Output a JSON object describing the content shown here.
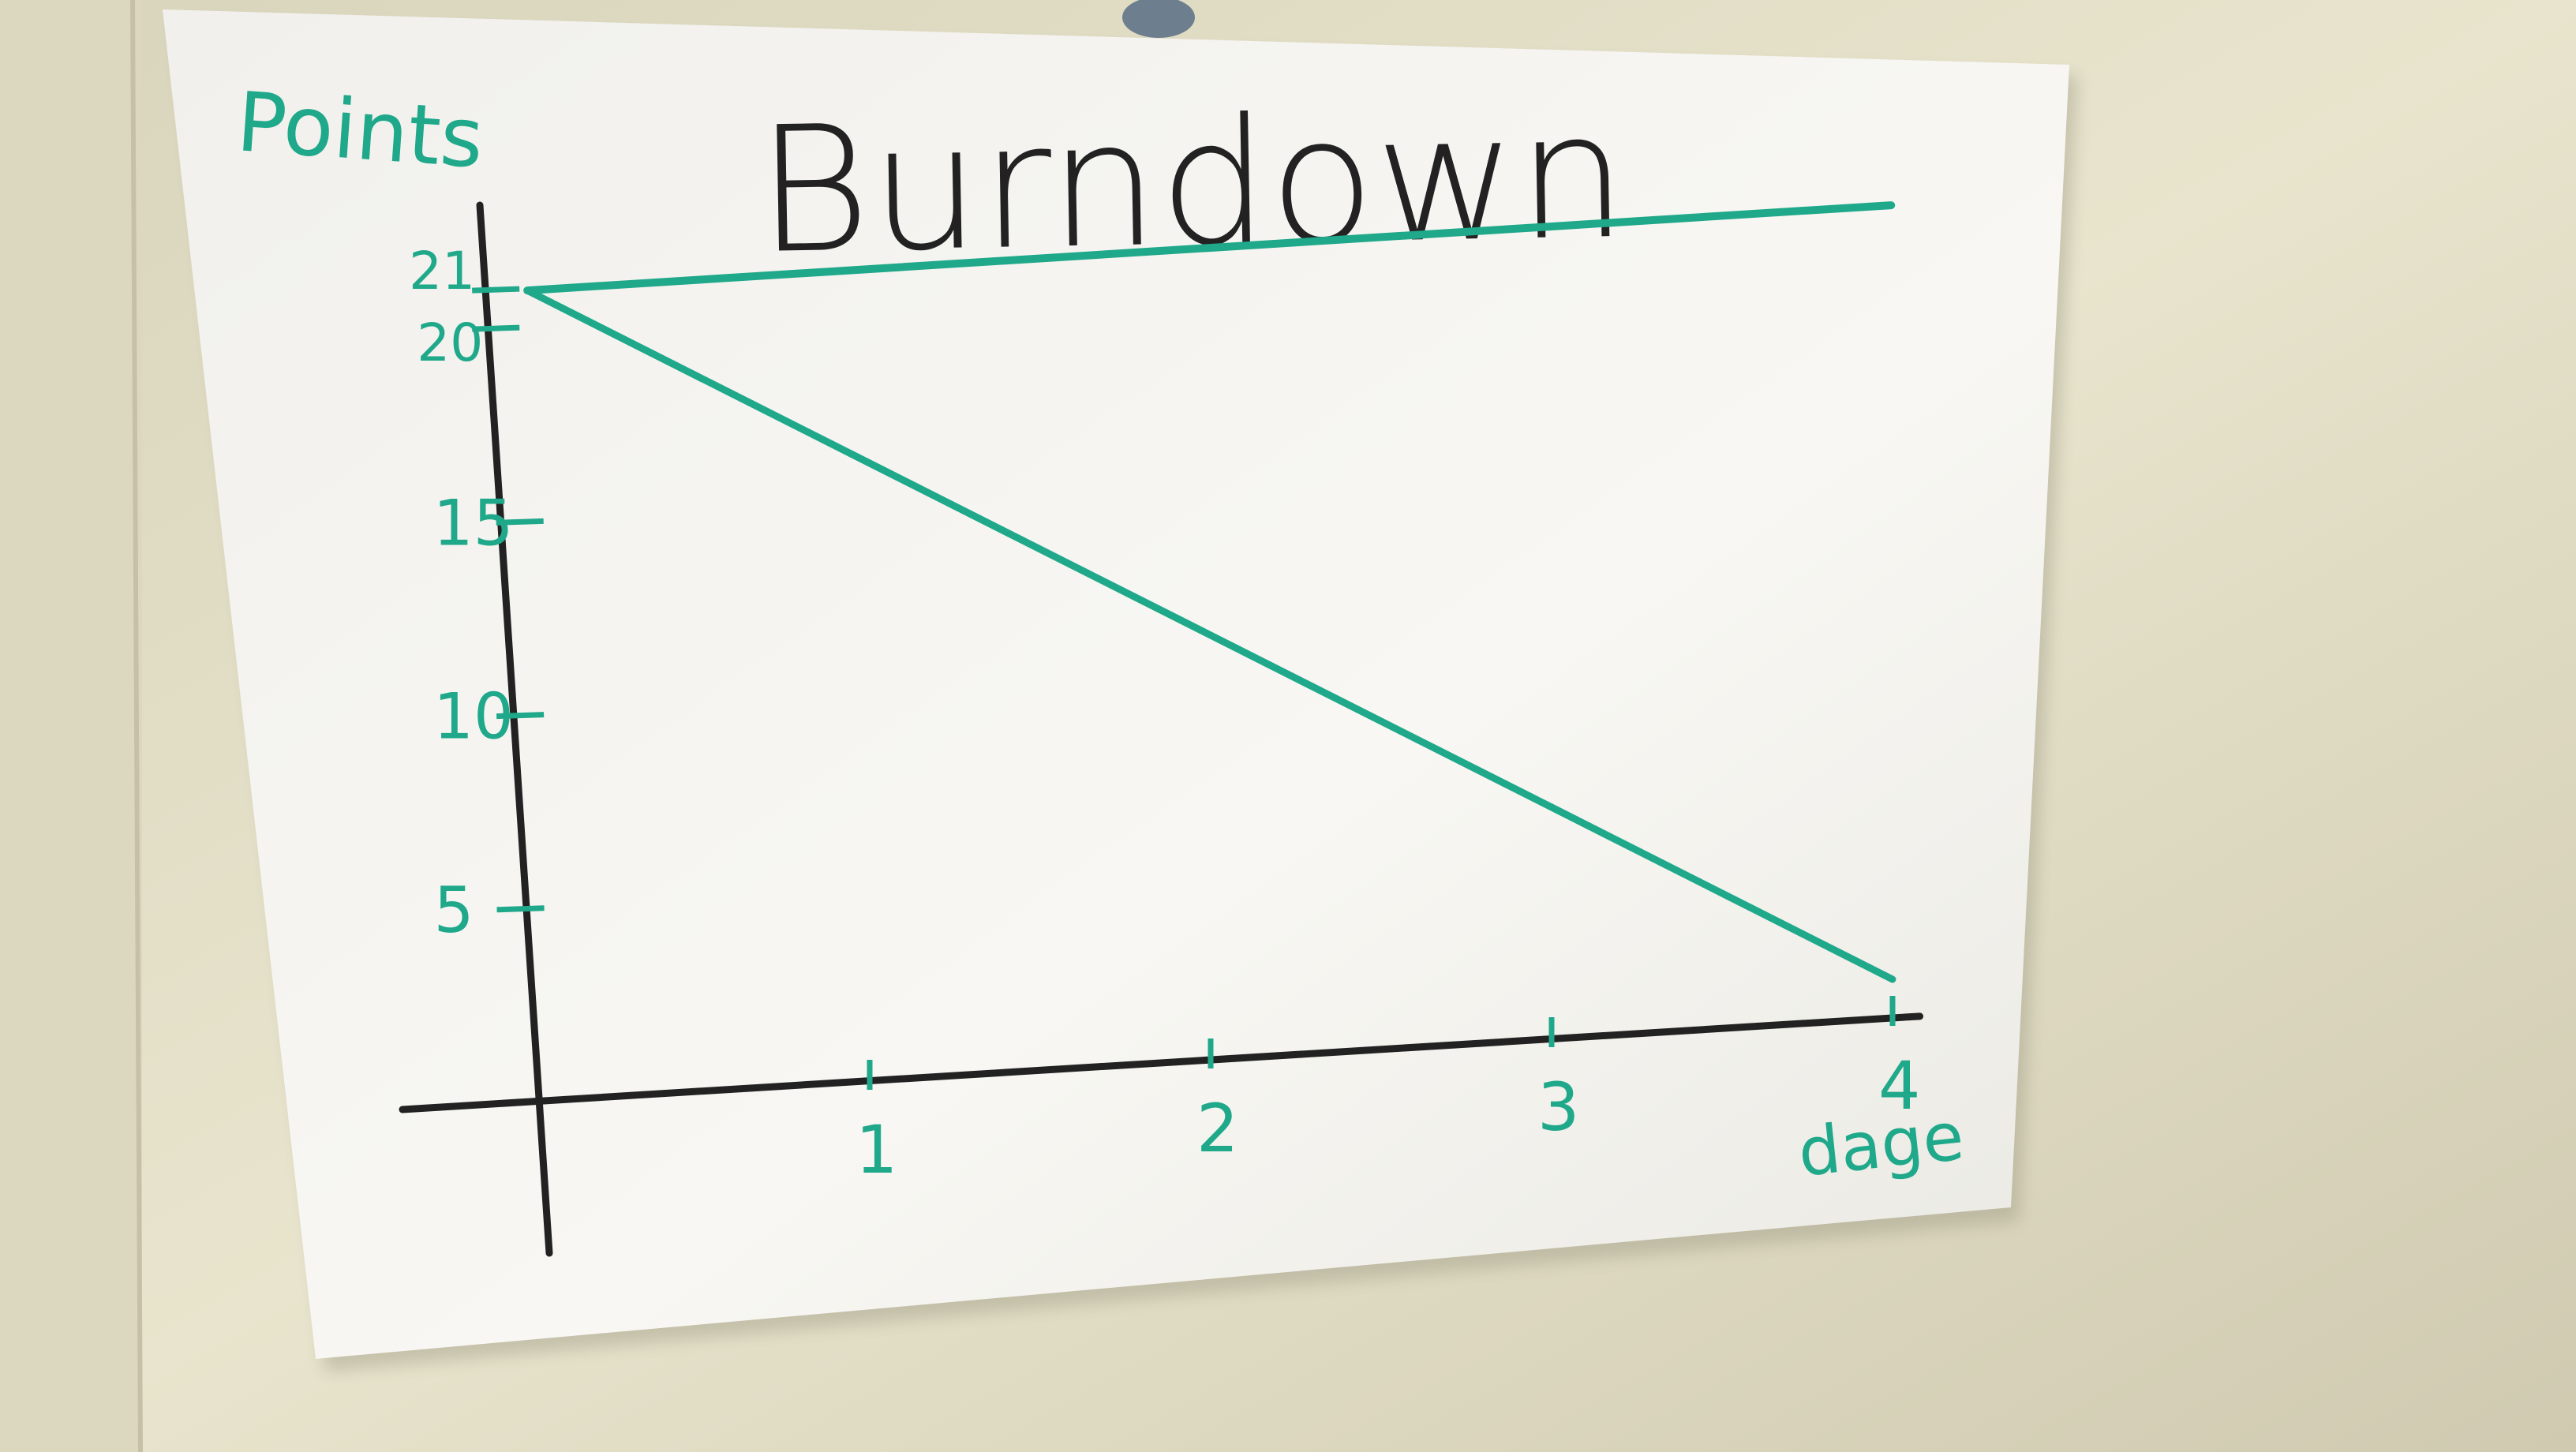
{
  "photo": {
    "wall_color": "#e6e2cc",
    "paper_color": "#f7f6f1",
    "ink_black": "#222222",
    "ink_green": "#1fa88a"
  },
  "chart_data": {
    "type": "line",
    "title": "Burndown",
    "ylabel": "Points",
    "xlabel": "dage",
    "x_ticks": [
      "1",
      "2",
      "3",
      "4"
    ],
    "y_ticks": [
      "5",
      "10",
      "15",
      "20",
      "21"
    ],
    "xlim": [
      0,
      4
    ],
    "ylim": [
      0,
      23
    ],
    "grid": false,
    "series": [
      {
        "values": [
          [
            0,
            21
          ],
          [
            1,
            21
          ],
          [
            2,
            21
          ],
          [
            3,
            21
          ],
          [
            4,
            21
          ]
        ]
      },
      {
        "values": [
          [
            0,
            21
          ],
          [
            1,
            16
          ],
          [
            2,
            11
          ],
          [
            3,
            6
          ],
          [
            4,
            1
          ]
        ]
      }
    ]
  }
}
